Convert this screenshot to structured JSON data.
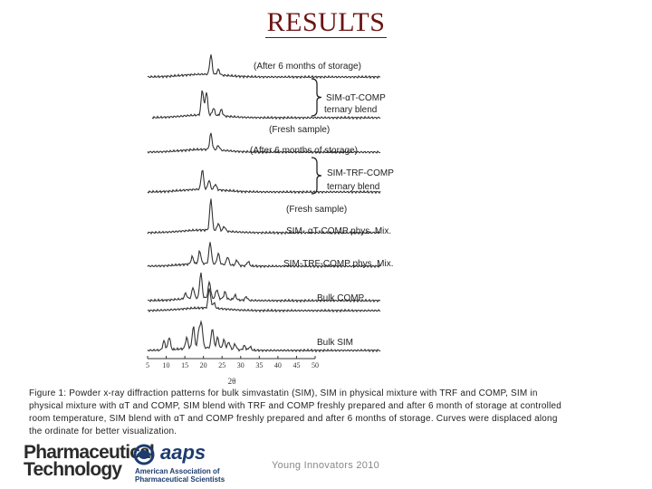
{
  "slide": {
    "title": "RESULTS",
    "caption": "Figure 1: Powder x-ray diffraction patterns for bulk simvastatin (SIM), SIM in physical mixture with TRF and COMP, SIM in physical mixture with αT and COMP, SIM blend with TRF and COMP freshly prepared and after 6 month of storage at controlled room temperature, SIM blend with αT and COMP freshly prepared and after 6 months of storage. Curves were displaced along the ordinate for better visualization.",
    "footer": "Young Innovators 2010",
    "logos": {
      "pharm_line1": "Pharmaceutical",
      "pharm_line2": "Technology",
      "aaps_text": "aaps",
      "aaps_sub1": "American Association of",
      "aaps_sub2": "Pharmaceutical Scientists"
    }
  },
  "chart_data": {
    "type": "line",
    "xlabel": "2θ",
    "x_ticks": [
      5,
      10,
      15,
      20,
      25,
      30,
      35,
      40,
      45,
      50
    ],
    "xlim": [
      5,
      50
    ],
    "annotations": {
      "a_after": "(After 6 months of storage)",
      "a_group": "SIM-αT-COMP",
      "a_group2": "ternary blend",
      "a_fresh": "(Fresh sample)",
      "t_after": "(After 6 months of storage)",
      "t_group": "SIM-TRF-COMP",
      "t_group2": "ternary blend",
      "t_fresh": "(Fresh sample)"
    },
    "series": [
      {
        "name": "",
        "peaks": [
          [
            22.0,
            22
          ],
          [
            24.0,
            6
          ]
        ]
      },
      {
        "name": "",
        "peaks": [
          [
            19.7,
            28
          ],
          [
            20.8,
            26
          ],
          [
            22.7,
            8
          ],
          [
            24.8,
            7
          ]
        ]
      },
      {
        "name": "",
        "peaks": [
          [
            22.0,
            18
          ],
          [
            24.0,
            5
          ]
        ]
      },
      {
        "name": "",
        "peaks": [
          [
            19.7,
            22
          ],
          [
            21.5,
            10
          ],
          [
            23.2,
            6
          ]
        ]
      },
      {
        "name": "",
        "peaks": [
          [
            22.0,
            35
          ],
          [
            24.0,
            8
          ],
          [
            25.6,
            5
          ]
        ]
      },
      {
        "name": "SIM- αT-COMP phys. Mix.",
        "peaks": [
          [
            17.0,
            8
          ],
          [
            19.0,
            14
          ],
          [
            21.8,
            24
          ],
          [
            24.0,
            12
          ],
          [
            26.5,
            9
          ],
          [
            29.0,
            6
          ],
          [
            32.0,
            5
          ]
        ]
      },
      {
        "name": "SIM-TRF-COMP phys. Mix.",
        "peaks": [
          [
            15.2,
            6
          ],
          [
            17.2,
            12
          ],
          [
            19.3,
            28
          ],
          [
            21.6,
            18
          ],
          [
            23.6,
            10
          ],
          [
            25.8,
            8
          ],
          [
            28.5,
            5
          ],
          [
            31.5,
            4
          ]
        ]
      },
      {
        "name": "Bulk COMP",
        "peaks": [
          [
            21.6,
            22
          ],
          [
            22.8,
            6
          ]
        ]
      },
      {
        "name": "Bulk SIM",
        "peaks": [
          [
            9.4,
            10
          ],
          [
            10.8,
            14
          ],
          [
            15.5,
            12
          ],
          [
            17.3,
            24
          ],
          [
            18.8,
            20
          ],
          [
            19.5,
            26
          ],
          [
            22.4,
            22
          ],
          [
            23.8,
            12
          ],
          [
            25.5,
            10
          ],
          [
            26.8,
            8
          ],
          [
            28.5,
            6
          ],
          [
            31.0,
            5
          ],
          [
            32.5,
            4
          ]
        ]
      }
    ]
  }
}
